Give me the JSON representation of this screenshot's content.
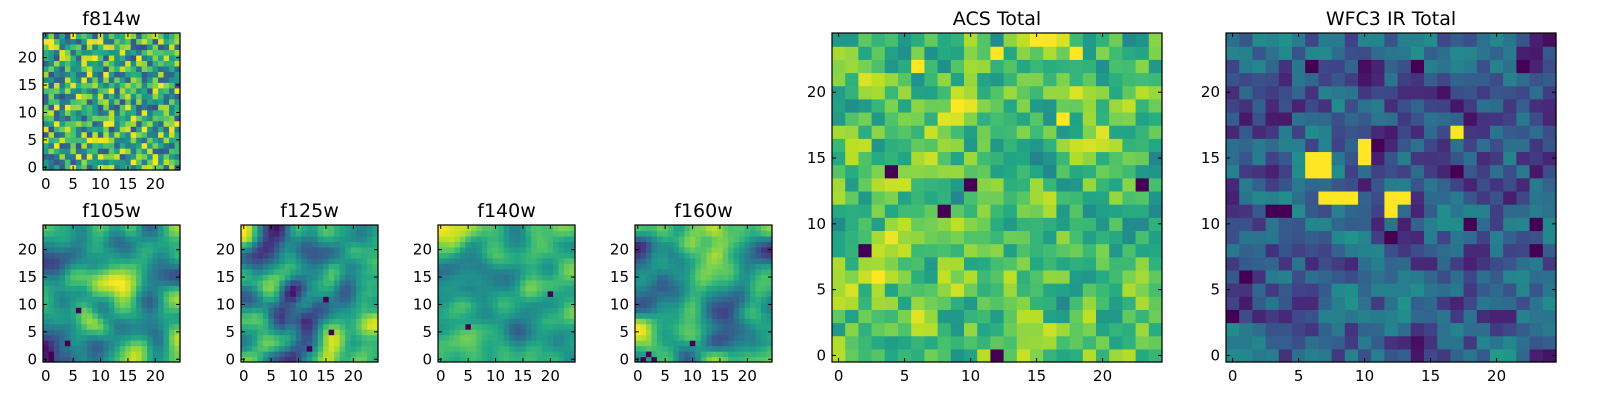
{
  "chart_data": [
    {
      "type": "heatmap",
      "title": "f814w",
      "colormap": "viridis",
      "grid_size": 25,
      "xlim": [
        -0.5,
        24.5
      ],
      "ylim": [
        -0.5,
        24.5
      ],
      "xticks": [
        0,
        5,
        10,
        15,
        20
      ],
      "yticks": [
        0,
        5,
        10,
        15,
        20
      ],
      "pattern": "fine",
      "value_range": [
        0.25,
        1.0
      ],
      "hotspots": [],
      "lowspots": []
    },
    {
      "type": "heatmap",
      "title": "f105w",
      "colormap": "viridis",
      "grid_size": 25,
      "xlim": [
        -0.5,
        24.5
      ],
      "ylim": [
        -0.5,
        24.5
      ],
      "xticks": [
        0,
        5,
        10,
        15,
        20
      ],
      "yticks": [
        0,
        5,
        10,
        15,
        20
      ],
      "pattern": "smooth",
      "value_range": [
        0.05,
        1.0
      ],
      "hotspots": [],
      "lowspots": [
        [
          1,
          0
        ],
        [
          1,
          1
        ],
        [
          4,
          3
        ],
        [
          6,
          9
        ]
      ]
    },
    {
      "type": "heatmap",
      "title": "f125w",
      "colormap": "viridis",
      "grid_size": 25,
      "xlim": [
        -0.5,
        24.5
      ],
      "ylim": [
        -0.5,
        24.5
      ],
      "xticks": [
        0,
        5,
        10,
        15,
        20
      ],
      "yticks": [
        0,
        5,
        10,
        15,
        20
      ],
      "pattern": "smooth",
      "value_range": [
        0.05,
        1.0
      ],
      "hotspots": [],
      "lowspots": [
        [
          15,
          11
        ],
        [
          16,
          5
        ],
        [
          12,
          2
        ]
      ]
    },
    {
      "type": "heatmap",
      "title": "f140w",
      "colormap": "viridis",
      "grid_size": 25,
      "xlim": [
        -0.5,
        24.5
      ],
      "ylim": [
        -0.5,
        24.5
      ],
      "xticks": [
        0,
        5,
        10,
        15,
        20
      ],
      "yticks": [
        0,
        5,
        10,
        15,
        20
      ],
      "pattern": "smooth",
      "value_range": [
        0.3,
        1.0
      ],
      "hotspots": [],
      "lowspots": [
        [
          20,
          12
        ],
        [
          5,
          6
        ]
      ]
    },
    {
      "type": "heatmap",
      "title": "f160w",
      "colormap": "viridis",
      "grid_size": 25,
      "xlim": [
        -0.5,
        24.5
      ],
      "ylim": [
        -0.5,
        24.5
      ],
      "xticks": [
        0,
        5,
        10,
        15,
        20
      ],
      "yticks": [
        0,
        5,
        10,
        15,
        20
      ],
      "pattern": "smooth",
      "value_range": [
        0.1,
        1.0
      ],
      "hotspots": [],
      "lowspots": [
        [
          1,
          0
        ],
        [
          2,
          1
        ],
        [
          3,
          0
        ],
        [
          10,
          3
        ]
      ]
    },
    {
      "type": "heatmap",
      "title": "ACS Total",
      "colormap": "viridis",
      "grid_size": 25,
      "xlim": [
        -0.5,
        24.5
      ],
      "ylim": [
        -0.5,
        24.5
      ],
      "xticks": [
        0,
        5,
        10,
        15,
        20
      ],
      "yticks": [
        0,
        5,
        10,
        15,
        20
      ],
      "pattern": "coarse",
      "value_range": [
        0.45,
        1.0
      ],
      "hotspots": [
        [
          6,
          22
        ],
        [
          12,
          23
        ],
        [
          18,
          23
        ],
        [
          17,
          18
        ],
        [
          3,
          6
        ]
      ],
      "lowspots": [
        [
          4,
          14
        ],
        [
          8,
          11
        ],
        [
          2,
          8
        ],
        [
          10,
          13
        ],
        [
          12,
          0
        ],
        [
          23,
          13
        ]
      ]
    },
    {
      "type": "heatmap",
      "title": "WFC3 IR Total",
      "colormap": "viridis",
      "grid_size": 25,
      "xlim": [
        -0.5,
        24.5
      ],
      "ylim": [
        -0.5,
        24.5
      ],
      "xticks": [
        0,
        5,
        10,
        15,
        20
      ],
      "yticks": [
        0,
        5,
        10,
        15,
        20
      ],
      "pattern": "coarse",
      "value_range": [
        0.0,
        0.55
      ],
      "hotspots": [
        [
          6,
          15
        ],
        [
          7,
          15
        ],
        [
          6,
          14
        ],
        [
          7,
          14
        ],
        [
          7,
          12
        ],
        [
          8,
          12
        ],
        [
          9,
          12
        ],
        [
          10,
          16
        ],
        [
          10,
          15
        ],
        [
          12,
          12
        ],
        [
          13,
          12
        ],
        [
          12,
          11
        ],
        [
          17,
          17
        ]
      ],
      "lowspots": [
        [
          0,
          3
        ],
        [
          1,
          6
        ],
        [
          6,
          22
        ],
        [
          14,
          22
        ],
        [
          22,
          22
        ],
        [
          23,
          10
        ],
        [
          23,
          8
        ],
        [
          12,
          9
        ],
        [
          18,
          10
        ],
        [
          17,
          14
        ],
        [
          3,
          11
        ],
        [
          4,
          11
        ]
      ]
    }
  ]
}
